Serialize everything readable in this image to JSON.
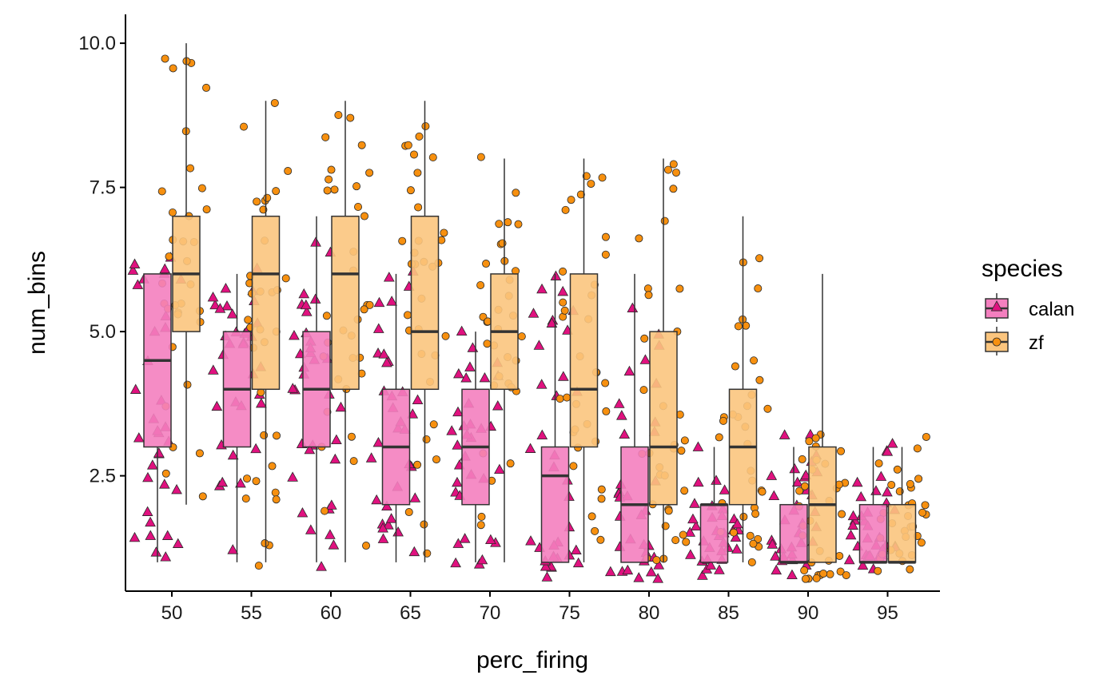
{
  "chart_data": {
    "type": "boxplot",
    "title": "",
    "xlabel": "perc_firing",
    "ylabel": "num_bins",
    "categories": [
      "50",
      "55",
      "60",
      "65",
      "70",
      "75",
      "80",
      "85",
      "90",
      "95"
    ],
    "ylim": [
      0.5,
      10.5
    ],
    "yticks": [
      2.5,
      5.0,
      7.5,
      10.0
    ],
    "ytick_labels": [
      "2.5",
      "5.0",
      "7.5",
      "10.0"
    ],
    "grid": false,
    "legend": {
      "title": "species",
      "position": "right"
    },
    "series": [
      {
        "name": "calan",
        "fill": "#f47fbf",
        "point_color": "#e0117f",
        "marker": "triangle",
        "boxes": [
          {
            "category": "50",
            "whisker_low": 1.0,
            "q1": 3.0,
            "median": 4.5,
            "q3": 6.0,
            "whisker_high": 6.0
          },
          {
            "category": "55",
            "whisker_low": 1.0,
            "q1": 3.0,
            "median": 4.0,
            "q3": 5.0,
            "whisker_high": 6.0
          },
          {
            "category": "60",
            "whisker_low": 1.0,
            "q1": 3.0,
            "median": 4.0,
            "q3": 5.0,
            "whisker_high": 7.0
          },
          {
            "category": "65",
            "whisker_low": 1.0,
            "q1": 2.0,
            "median": 3.0,
            "q3": 4.0,
            "whisker_high": 6.0
          },
          {
            "category": "70",
            "whisker_low": 1.0,
            "q1": 2.0,
            "median": 3.0,
            "q3": 4.0,
            "whisker_high": 5.0
          },
          {
            "category": "75",
            "whisker_low": 1.0,
            "q1": 1.0,
            "median": 2.5,
            "q3": 3.0,
            "whisker_high": 6.0
          },
          {
            "category": "80",
            "whisker_low": 1.0,
            "q1": 1.0,
            "median": 2.0,
            "q3": 3.0,
            "whisker_high": 6.0
          },
          {
            "category": "85",
            "whisker_low": 1.0,
            "q1": 1.0,
            "median": 2.0,
            "q3": 2.0,
            "whisker_high": 3.0
          },
          {
            "category": "90",
            "whisker_low": 1.0,
            "q1": 1.0,
            "median": 1.0,
            "q3": 2.0,
            "whisker_high": 3.0
          },
          {
            "category": "95",
            "whisker_low": 1.0,
            "q1": 1.0,
            "median": 1.0,
            "q3": 2.0,
            "whisker_high": 3.0
          }
        ]
      },
      {
        "name": "zf",
        "fill": "#fbc57e",
        "point_color": "#f7900f",
        "marker": "circle",
        "boxes": [
          {
            "category": "50",
            "whisker_low": 2.0,
            "q1": 5.0,
            "median": 6.0,
            "q3": 7.0,
            "whisker_high": 10.0
          },
          {
            "category": "55",
            "whisker_low": 1.0,
            "q1": 4.0,
            "median": 6.0,
            "q3": 7.0,
            "whisker_high": 9.0
          },
          {
            "category": "60",
            "whisker_low": 1.0,
            "q1": 4.0,
            "median": 6.0,
            "q3": 7.0,
            "whisker_high": 9.0
          },
          {
            "category": "65",
            "whisker_low": 1.0,
            "q1": 4.0,
            "median": 5.0,
            "q3": 7.0,
            "whisker_high": 9.0
          },
          {
            "category": "70",
            "whisker_low": 1.0,
            "q1": 4.0,
            "median": 5.0,
            "q3": 6.0,
            "whisker_high": 8.0
          },
          {
            "category": "75",
            "whisker_low": 1.0,
            "q1": 3.0,
            "median": 4.0,
            "q3": 6.0,
            "whisker_high": 8.0
          },
          {
            "category": "80",
            "whisker_low": 1.0,
            "q1": 2.0,
            "median": 3.0,
            "q3": 5.0,
            "whisker_high": 8.0
          },
          {
            "category": "85",
            "whisker_low": 1.0,
            "q1": 2.0,
            "median": 3.0,
            "q3": 4.0,
            "whisker_high": 7.0
          },
          {
            "category": "90",
            "whisker_low": 1.0,
            "q1": 1.0,
            "median": 2.0,
            "q3": 3.0,
            "whisker_high": 6.0
          },
          {
            "category": "95",
            "whisker_low": 1.0,
            "q1": 1.0,
            "median": 1.0,
            "q3": 2.0,
            "whisker_high": 3.0
          }
        ]
      }
    ]
  }
}
